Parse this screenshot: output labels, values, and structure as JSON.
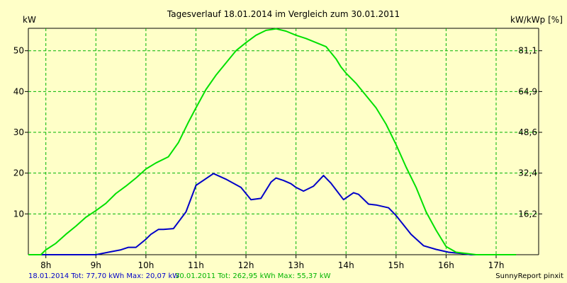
{
  "chart_data": {
    "type": "line",
    "title": "Tagesverlauf 18.01.2014 im Vergleich zum 30.01.2011",
    "ylabel_left": "kW",
    "ylabel_right": "kW/kWp [%]",
    "x_ticks": [
      "8h",
      "9h",
      "10h",
      "11h",
      "12h",
      "13h",
      "14h",
      "15h",
      "16h",
      "17h"
    ],
    "x_tick_values": [
      8,
      9,
      10,
      11,
      12,
      13,
      14,
      15,
      16,
      17
    ],
    "xlim": [
      7.65,
      17.85
    ],
    "y_ticks_left": [
      "10",
      "20",
      "30",
      "40",
      "50"
    ],
    "y_tick_values_left": [
      10,
      20,
      30,
      40,
      50
    ],
    "y_ticks_right": [
      "16,2",
      "32,4",
      "48,6",
      "64,9",
      "81,1"
    ],
    "ylim": [
      0,
      55.5
    ],
    "grid": true,
    "legend_placement": "bottom",
    "series": [
      {
        "name": "18.01.2014",
        "color": "#0000c8",
        "x": [
          7.65,
          8.5,
          9.0,
          9.25,
          9.5,
          9.65,
          9.8,
          10.0,
          10.1,
          10.25,
          10.35,
          10.55,
          10.8,
          11.0,
          11.35,
          11.6,
          11.9,
          12.1,
          12.3,
          12.5,
          12.6,
          12.75,
          12.9,
          13.0,
          13.15,
          13.35,
          13.55,
          13.7,
          13.95,
          14.15,
          14.25,
          14.45,
          14.6,
          14.85,
          15.0,
          15.3,
          15.55,
          15.8,
          16.05,
          16.3,
          16.5,
          16.7,
          16.9
        ],
        "values": [
          0,
          0,
          0,
          0.6,
          1.2,
          1.8,
          1.8,
          3.8,
          5.0,
          6.2,
          6.2,
          6.4,
          10.5,
          17,
          19.9,
          18.5,
          16.5,
          13.5,
          13.8,
          17.8,
          18.8,
          18.2,
          17.4,
          16.5,
          15.6,
          16.8,
          19.4,
          17.5,
          13.5,
          15.2,
          14.8,
          12.4,
          12.2,
          11.5,
          9.6,
          5.0,
          2.2,
          1.3,
          0.6,
          0.3,
          0,
          0,
          0
        ]
      },
      {
        "name": "30.01.2011",
        "color": "#00e000",
        "x": [
          7.65,
          7.9,
          8.0,
          8.2,
          8.4,
          8.6,
          8.8,
          9.0,
          9.2,
          9.4,
          9.6,
          9.8,
          10.0,
          10.2,
          10.45,
          10.65,
          10.85,
          11.0,
          11.2,
          11.4,
          11.6,
          11.8,
          12.0,
          12.2,
          12.4,
          12.6,
          12.8,
          13.0,
          13.2,
          13.4,
          13.6,
          13.8,
          13.9,
          14.0,
          14.2,
          14.4,
          14.6,
          14.8,
          15.0,
          15.2,
          15.4,
          15.6,
          15.8,
          16.0,
          16.2,
          16.4,
          16.6,
          16.75,
          16.9,
          17.1,
          17.4
        ],
        "values": [
          0,
          0,
          1.2,
          2.8,
          5.0,
          7.0,
          9.2,
          10.8,
          12.6,
          15.0,
          16.8,
          18.8,
          21.0,
          22.5,
          24.0,
          27.5,
          32.5,
          36.0,
          40.5,
          44.0,
          47.0,
          50.0,
          52.0,
          53.8,
          55.0,
          55.37,
          54.8,
          53.8,
          53.0,
          52.0,
          51.0,
          48.0,
          46.0,
          44.5,
          42.0,
          39.0,
          36.0,
          32.0,
          27.0,
          21.5,
          16.5,
          10.5,
          6.0,
          2.0,
          0.6,
          0.3,
          0,
          0,
          0,
          0,
          0
        ]
      }
    ]
  },
  "footer": {
    "series1_text": "18.01.2014 Tot: 77,70 kWh Max: 20,07 kW",
    "series2_text": "30.01.2011 Tot: 262,95 kWh Max: 55,37 kW",
    "credit": "SunnyReport pinxit"
  },
  "colors": {
    "background": "#ffffc8",
    "grid": "#00b400",
    "axis": "#000000"
  }
}
